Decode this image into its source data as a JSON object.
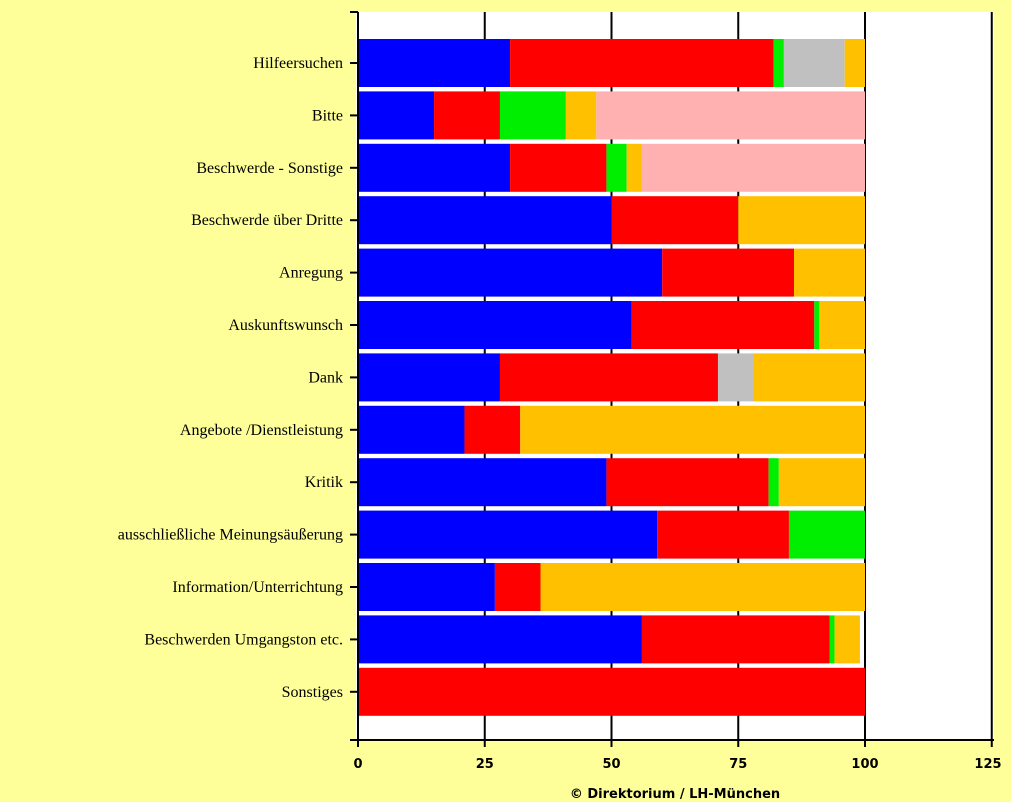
{
  "chart_data": {
    "type": "bar",
    "orientation": "horizontal",
    "stacked": true,
    "categories": [
      "Hilfeersuchen",
      "Bitte",
      "Beschwerde - Sonstige",
      "Beschwerde über Dritte",
      "Anregung",
      "Auskunftswunsch",
      "Dank",
      "Angebote /Dienstleistung",
      "Kritik",
      "ausschließliche Meinungsäußerung",
      "Information/Unterrichtung",
      "Beschwerden Umgangston etc.",
      "Sonstiges"
    ],
    "series": [
      {
        "color": "#0000ff",
        "values": [
          30,
          15,
          30,
          50,
          60,
          54,
          28,
          21,
          49,
          59,
          27,
          56,
          0
        ]
      },
      {
        "color": "#ff0000",
        "values": [
          52,
          13,
          19,
          25,
          26,
          36,
          43,
          11,
          32,
          26,
          9,
          37,
          100
        ]
      },
      {
        "color": "#00ee00",
        "values": [
          2,
          13,
          4,
          0,
          0,
          1,
          0,
          0,
          2,
          15,
          0,
          1,
          0
        ]
      },
      {
        "color": "#c0c0c0",
        "values": [
          12,
          0,
          0,
          0,
          0,
          0,
          7,
          0,
          0,
          0,
          0,
          0,
          0
        ]
      },
      {
        "color": "#ffc000",
        "values": [
          4,
          6,
          3,
          25,
          14,
          9,
          22,
          68,
          17,
          0,
          64,
          5,
          0
        ]
      },
      {
        "color": "#ffb0b0",
        "values": [
          0,
          53,
          44,
          0,
          0,
          0,
          0,
          0,
          0,
          0,
          0,
          0,
          0
        ]
      }
    ],
    "xlim": [
      0,
      125
    ],
    "xticks": [
      "0",
      "25",
      "50",
      "75",
      "100",
      "125"
    ],
    "grid": true,
    "legend": "none"
  },
  "footer_text": "© Direktorium  /  LH-München"
}
